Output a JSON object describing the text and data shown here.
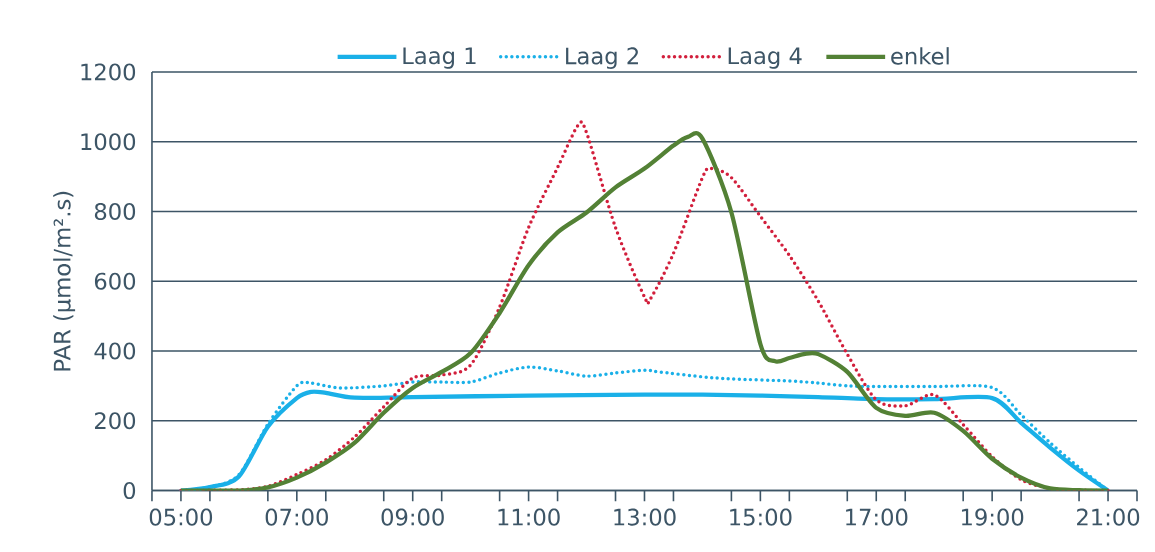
{
  "chart_data": {
    "type": "line",
    "ylabel": "PAR (µmol/m².s)",
    "xlim": [
      4.5,
      21.5
    ],
    "ylim": [
      0,
      1200
    ],
    "yticks": [
      0,
      200,
      400,
      600,
      800,
      1000,
      1200
    ],
    "xticks": [
      {
        "value": 4.5,
        "label": null
      },
      {
        "value": 5,
        "label": "05:00"
      },
      {
        "value": 5.5,
        "label": null
      },
      {
        "value": 6.5,
        "label": null
      },
      {
        "value": 7,
        "label": "07:00"
      },
      {
        "value": 7.5,
        "label": null
      },
      {
        "value": 8.5,
        "label": null
      },
      {
        "value": 9,
        "label": "09:00"
      },
      {
        "value": 9.5,
        "label": null
      },
      {
        "value": 10.5,
        "label": null
      },
      {
        "value": 11,
        "label": "11:00"
      },
      {
        "value": 11.5,
        "label": null
      },
      {
        "value": 12.5,
        "label": null
      },
      {
        "value": 13,
        "label": "13:00"
      },
      {
        "value": 13.5,
        "label": null
      },
      {
        "value": 14.5,
        "label": null
      },
      {
        "value": 15,
        "label": "15:00"
      },
      {
        "value": 15.5,
        "label": null
      },
      {
        "value": 16.5,
        "label": null
      },
      {
        "value": 17,
        "label": "17:00"
      },
      {
        "value": 17.5,
        "label": null
      },
      {
        "value": 18.5,
        "label": null
      },
      {
        "value": 19,
        "label": "19:00"
      },
      {
        "value": 19.5,
        "label": null
      },
      {
        "value": 20.5,
        "label": null
      },
      {
        "value": 21,
        "label": "21:00"
      },
      {
        "value": 21.5,
        "label": null
      }
    ],
    "grid": "y",
    "legend": "top",
    "marker": "none",
    "series": [
      {
        "name": "Laag 1",
        "color": "#1ab0e8",
        "line_style": "solid",
        "x": [
          5,
          5.5,
          6,
          6.5,
          7,
          7.25,
          7.5,
          8,
          9,
          11,
          13,
          14,
          15,
          16,
          17,
          18,
          19,
          19.5,
          20,
          20.5,
          21
        ],
        "values": [
          0,
          10,
          40,
          183,
          265,
          283,
          280,
          266,
          268,
          272,
          275,
          275,
          272,
          268,
          262,
          262,
          265,
          194,
          123,
          57,
          0
        ]
      },
      {
        "name": "Laag 2",
        "color": "#1ab0e8",
        "line_style": "dotted",
        "x": [
          5,
          5.5,
          6,
          6.5,
          7,
          7.25,
          7.75,
          8.5,
          9,
          9.5,
          10,
          10.5,
          11,
          11.5,
          12,
          12.5,
          13,
          13.25,
          14,
          14.5,
          15.5,
          16,
          16.5,
          17,
          18,
          19,
          19.5,
          20,
          20.5,
          21
        ],
        "values": [
          0,
          10,
          45,
          190,
          300,
          308,
          294,
          300,
          311,
          311,
          311,
          337,
          354,
          343,
          328,
          337,
          345,
          340,
          326,
          320,
          314,
          308,
          300,
          298,
          298,
          295,
          217,
          137,
          66,
          0
        ]
      },
      {
        "name": "Laag 4",
        "color": "#d21f3c",
        "line_style": "dotted",
        "x": [
          5,
          6,
          6.5,
          7,
          7.5,
          8,
          8.5,
          9,
          9.5,
          10,
          10.5,
          11,
          11.5,
          11.85,
          12,
          12.5,
          13,
          13.1,
          13.5,
          14,
          14.15,
          14.5,
          15,
          15.5,
          16,
          16.5,
          17,
          17.5,
          18,
          18.5,
          19,
          19.5,
          20,
          20.5,
          21
        ],
        "values": [
          0,
          2,
          12,
          46,
          88,
          154,
          240,
          322,
          331,
          360,
          526,
          754,
          926,
          1046,
          1026,
          754,
          555,
          549,
          680,
          897,
          923,
          897,
          786,
          674,
          543,
          391,
          260,
          243,
          274,
          189,
          97,
          31,
          6,
          1,
          0
        ]
      },
      {
        "name": "enkel",
        "color": "#538135",
        "line_style": "solid",
        "x": [
          5,
          6,
          6.5,
          7,
          7.5,
          8,
          8.5,
          9,
          9.5,
          10,
          10.5,
          11,
          11.5,
          12,
          12.5,
          13,
          13.5,
          13.75,
          14,
          14.5,
          15,
          15.25,
          15.5,
          15.75,
          16,
          16.5,
          17,
          17.5,
          18,
          18.5,
          19,
          19.5,
          20,
          20.5,
          21
        ],
        "values": [
          0,
          0,
          9,
          37,
          80,
          137,
          223,
          294,
          340,
          394,
          509,
          646,
          740,
          797,
          869,
          923,
          989,
          1014,
          1009,
          797,
          420,
          371,
          380,
          391,
          391,
          340,
          237,
          214,
          223,
          171,
          91,
          37,
          6,
          1,
          0
        ]
      }
    ]
  }
}
